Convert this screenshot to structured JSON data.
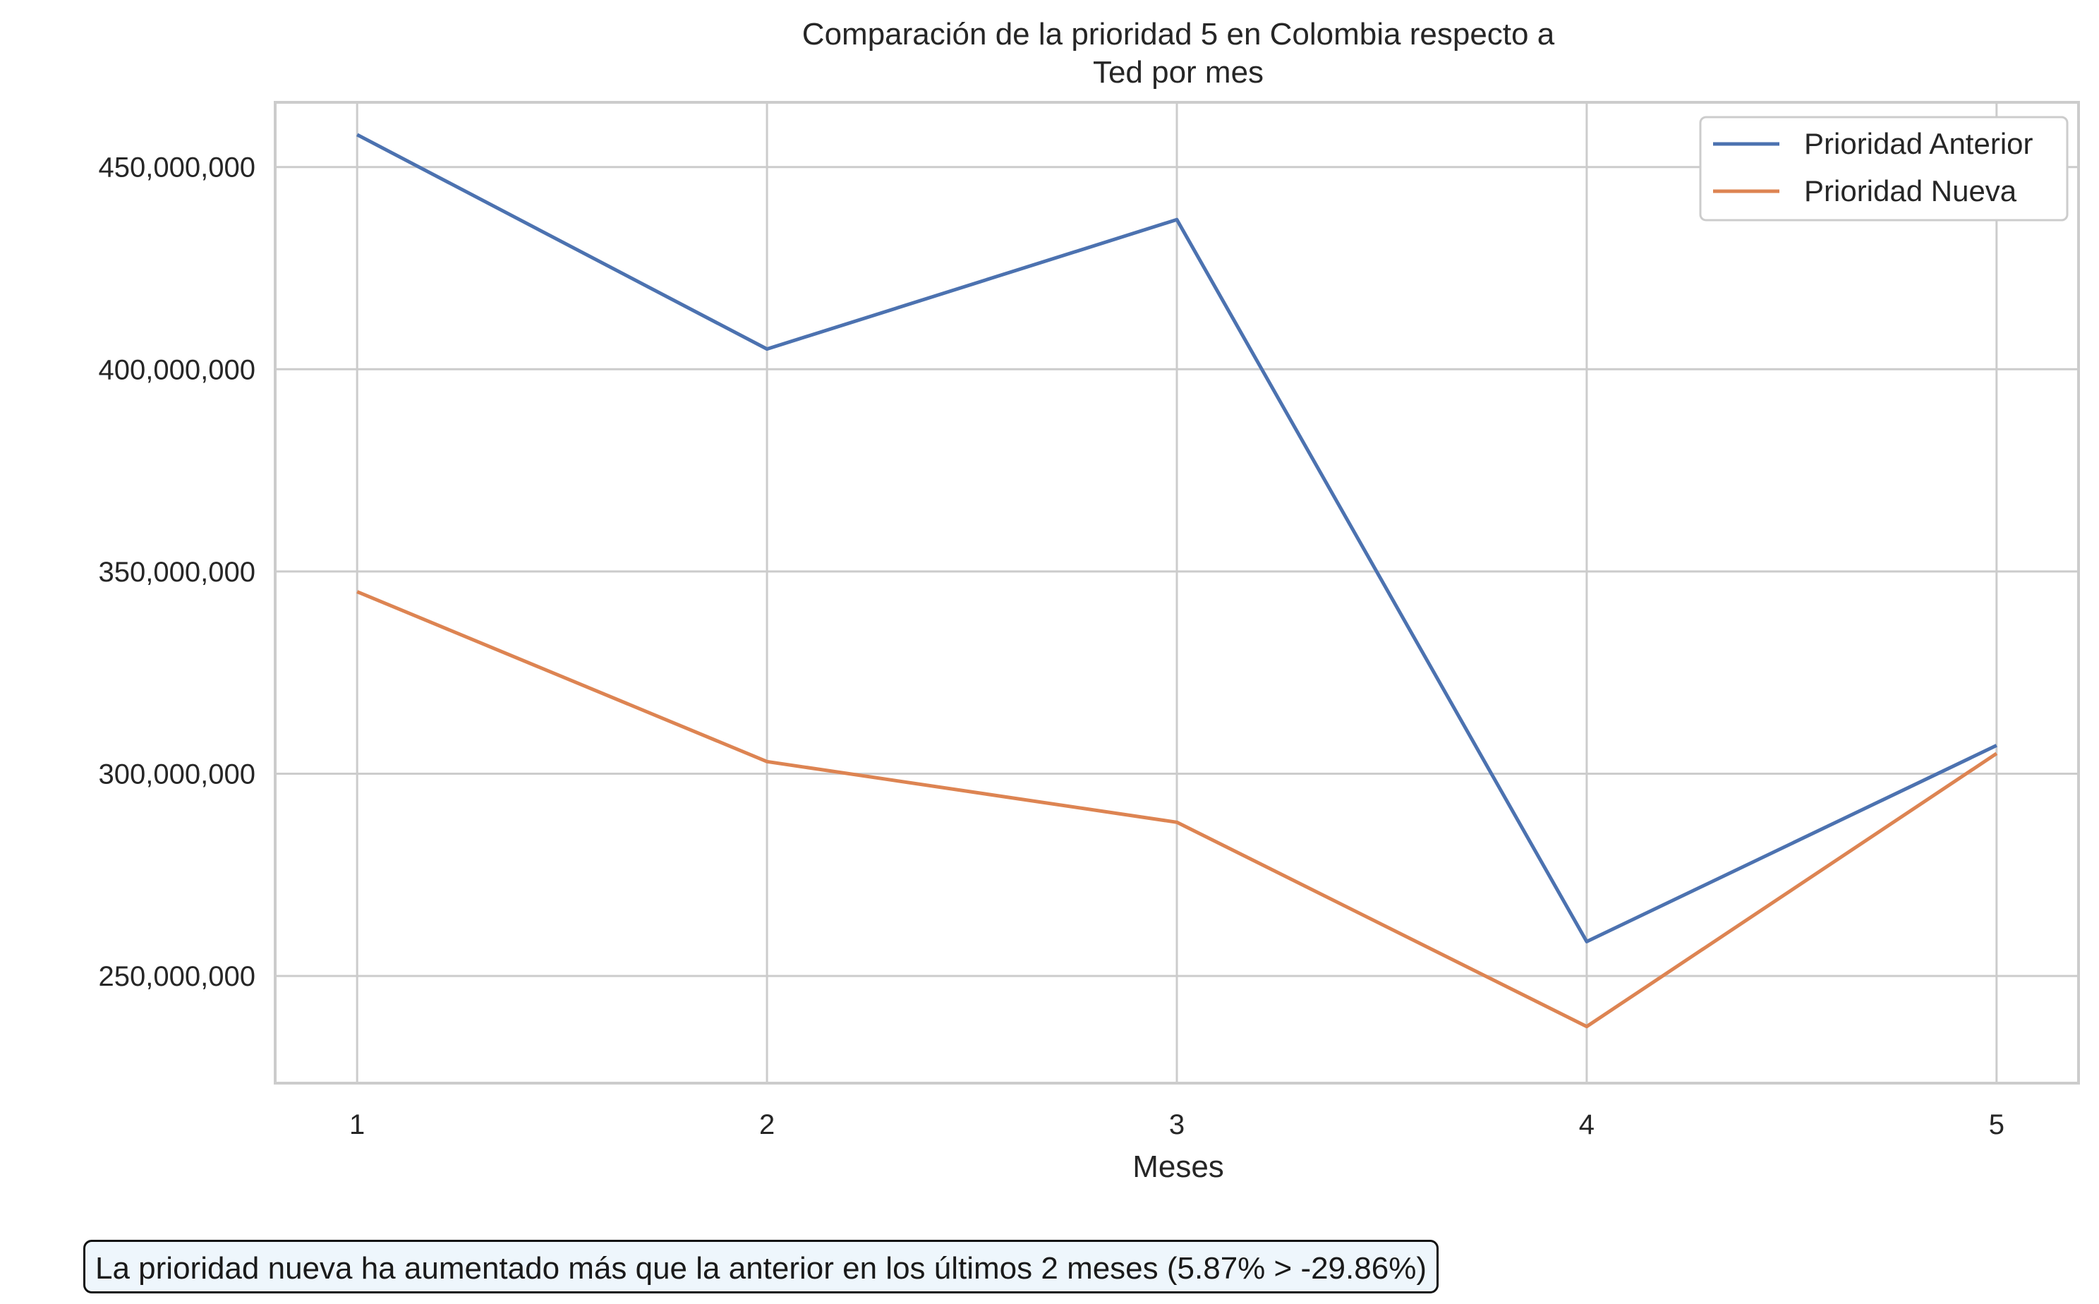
{
  "chart_data": {
    "type": "line",
    "title": [
      "Comparación de la prioridad 5 en Colombia respecto a",
      "Ted por mes"
    ],
    "xlabel": "Meses",
    "ylabel": "",
    "x": [
      1,
      2,
      3,
      4,
      5
    ],
    "x_tick_labels": [
      "1",
      "2",
      "3",
      "4",
      "5"
    ],
    "xlim": [
      0.8,
      5.2
    ],
    "ylim": [
      223500000,
      466000000
    ],
    "y_ticks": [
      250000000,
      300000000,
      350000000,
      400000000,
      450000000
    ],
    "y_tick_labels": [
      "250,000,000",
      "300,000,000",
      "350,000,000",
      "400,000,000",
      "450,000,000"
    ],
    "grid": true,
    "legend_position": "top-right",
    "series": [
      {
        "name": "Prioridad Anterior",
        "color": "#4c72b0",
        "values": [
          458000000,
          405000000,
          437000000,
          258500000,
          307000000
        ]
      },
      {
        "name": "Prioridad Nueva",
        "color": "#dd8452",
        "values": [
          345000000,
          303000000,
          288000000,
          237500000,
          305000000
        ]
      }
    ]
  },
  "annotation": "La prioridad nueva ha aumentado más que la anterior en los últimos 2 meses (5.87% > -29.86%)"
}
